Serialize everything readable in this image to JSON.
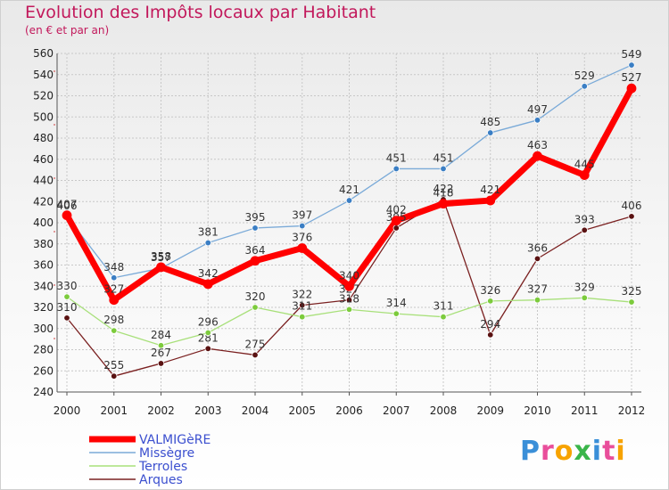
{
  "logo": "Proxiti",
  "chart_data": {
    "type": "line",
    "title": "Evolution des Impôts locaux par Habitant",
    "subtitle": "(en € et par an)",
    "xlabel": "",
    "ylabel": "",
    "ylim": [
      240,
      560
    ],
    "yticks": [
      240,
      260,
      280,
      300,
      320,
      340,
      360,
      380,
      400,
      420,
      440,
      460,
      480,
      500,
      520,
      540,
      560
    ],
    "x": [
      "2000",
      "2001",
      "2002",
      "2003",
      "2004",
      "2005",
      "2006",
      "2007",
      "2008",
      "2009",
      "2010",
      "2011",
      "2012"
    ],
    "grid": true,
    "legend_position": "bottom-left",
    "series": [
      {
        "name": "VALMIGèRE",
        "color": "#ff0000",
        "values": [
          407,
          327,
          358,
          342,
          364,
          376,
          340,
          402,
          418,
          421,
          463,
          445,
          527
        ]
      },
      {
        "name": "Missègre",
        "color": "#7aaad8",
        "values": [
          406,
          348,
          357,
          381,
          395,
          397,
          421,
          451,
          451,
          485,
          497,
          529,
          549
        ]
      },
      {
        "name": "Terroles",
        "color": "#a8e07a",
        "values": [
          330,
          298,
          284,
          296,
          320,
          311,
          318,
          314,
          311,
          326,
          327,
          329,
          325
        ]
      },
      {
        "name": "Arques",
        "color": "#7a2020",
        "values": [
          310,
          255,
          267,
          281,
          275,
          322,
          327,
          395,
          422,
          294,
          366,
          393,
          406
        ]
      }
    ]
  }
}
